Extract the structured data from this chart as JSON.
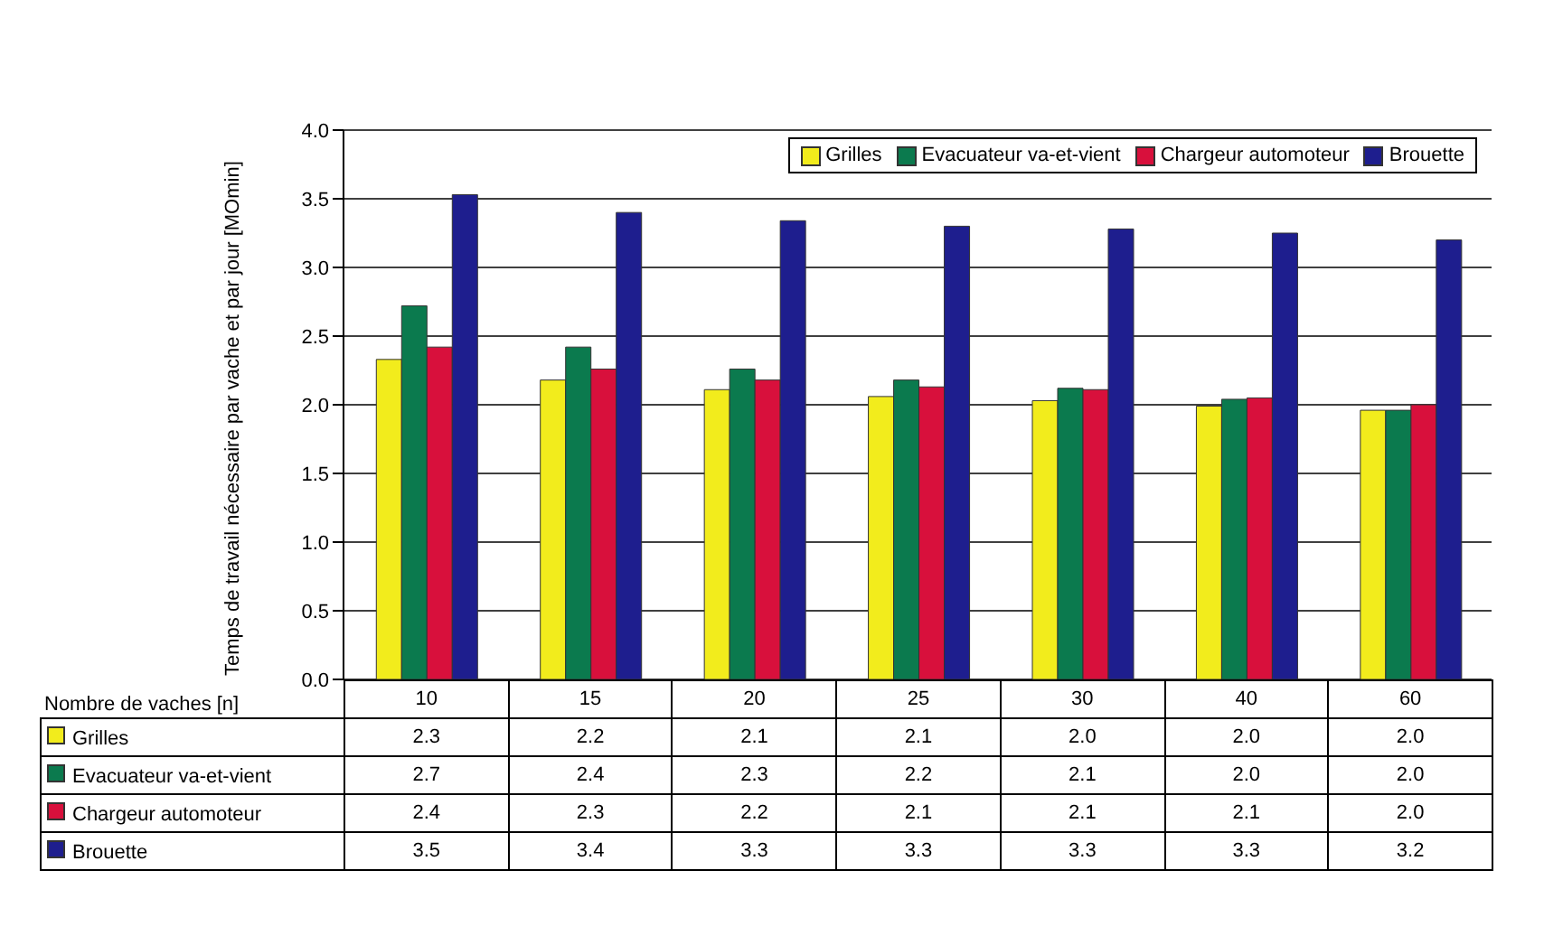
{
  "chart_data": {
    "type": "bar",
    "ylabel": "Temps de travail nécessaire par vache et par jour [MOmin]",
    "xlabel": "Nombre de vaches [n]",
    "categories": [
      "10",
      "15",
      "20",
      "25",
      "30",
      "40",
      "60"
    ],
    "series": [
      {
        "name": "Grilles",
        "color": "#f2ec1c",
        "values": [
          2.33,
          2.18,
          2.11,
          2.06,
          2.03,
          1.99,
          1.96
        ],
        "value_labels": [
          "2.3",
          "2.2",
          "2.1",
          "2.1",
          "2.0",
          "2.0",
          "2.0"
        ]
      },
      {
        "name": "Evacuateur va-et-vient",
        "color": "#0b7a4e",
        "values": [
          2.72,
          2.42,
          2.26,
          2.18,
          2.12,
          2.04,
          1.96
        ],
        "value_labels": [
          "2.7",
          "2.4",
          "2.3",
          "2.2",
          "2.1",
          "2.0",
          "2.0"
        ]
      },
      {
        "name": "Chargeur automoteur",
        "color": "#d8103c",
        "values": [
          2.42,
          2.26,
          2.18,
          2.13,
          2.11,
          2.05,
          2.0
        ],
        "value_labels": [
          "2.4",
          "2.3",
          "2.2",
          "2.1",
          "2.1",
          "2.1",
          "2.0"
        ]
      },
      {
        "name": "Brouette",
        "color": "#1e1e8e",
        "values": [
          3.53,
          3.4,
          3.34,
          3.3,
          3.28,
          3.25,
          3.2
        ],
        "value_labels": [
          "3.5",
          "3.4",
          "3.3",
          "3.3",
          "3.3",
          "3.3",
          "3.2"
        ]
      }
    ],
    "ylim": [
      0,
      4
    ],
    "yticks": [
      {
        "value": 0,
        "label": "0.0"
      },
      0.5,
      {
        "value": 1,
        "label": "1.0"
      },
      1.5,
      {
        "value": 2,
        "label": "2.0"
      },
      2.5,
      {
        "value": 3,
        "label": "3.0"
      },
      3.5,
      {
        "value": 4,
        "label": "4.0"
      }
    ],
    "grid": "y",
    "legend": "top right"
  }
}
